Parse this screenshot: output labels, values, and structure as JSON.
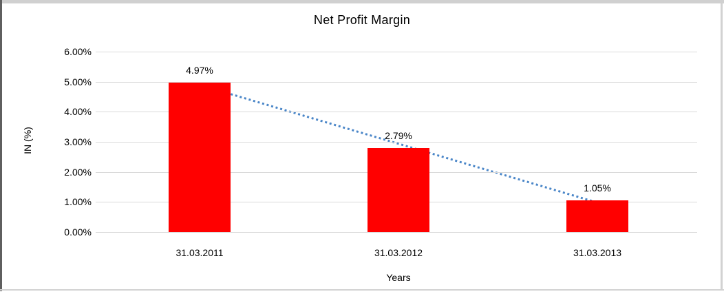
{
  "chart_data": {
    "type": "bar",
    "title": "Net Profit Margin",
    "categories": [
      "31.03.2011",
      "31.03.2012",
      "31.03.2013"
    ],
    "values": [
      4.97,
      2.79,
      1.05
    ],
    "value_labels": [
      "4.97%",
      "2.79%",
      "1.05%"
    ],
    "xlabel": "Years",
    "ylabel": "IN (%)",
    "ylim": [
      0,
      6
    ],
    "ytick_step": 1,
    "ytick_labels": [
      "0.00%",
      "1.00%",
      "2.00%",
      "3.00%",
      "4.00%",
      "5.00%",
      "6.00%"
    ],
    "grid": "horizontal",
    "legend": "none",
    "bar_color": "#ff0000",
    "gridline_color": "#d9d9d9",
    "text_color": "#000000",
    "trendline": {
      "type": "linear",
      "style": "dotted",
      "color": "#4a86c8"
    }
  }
}
